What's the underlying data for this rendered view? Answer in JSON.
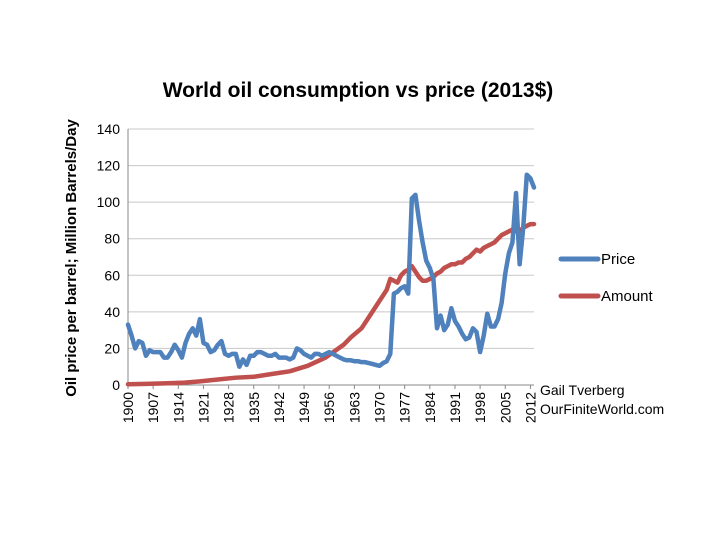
{
  "chart_data": {
    "type": "line",
    "title": "World oil consumption vs price (2013$)",
    "xlabel": "",
    "ylabel": "Oil price per barrel; Million Barrels/Day",
    "ylim": [
      0,
      140
    ],
    "yticks": [
      0,
      20,
      40,
      60,
      80,
      100,
      120,
      140
    ],
    "xlim": [
      1900,
      2013
    ],
    "xticks": [
      "1900",
      "1907",
      "1914",
      "1921",
      "1928",
      "1935",
      "1942",
      "1949",
      "1956",
      "1963",
      "1970",
      "1977",
      "1984",
      "1991",
      "1998",
      "2005",
      "2012"
    ],
    "grid": "horizontal",
    "legend_position": "right",
    "series": [
      {
        "name": "Price",
        "color": "#4f81bd",
        "points": [
          [
            1900,
            33
          ],
          [
            1901,
            27
          ],
          [
            1902,
            20
          ],
          [
            1903,
            24
          ],
          [
            1904,
            23
          ],
          [
            1905,
            16
          ],
          [
            1906,
            19
          ],
          [
            1907,
            18
          ],
          [
            1908,
            18
          ],
          [
            1909,
            18
          ],
          [
            1910,
            15
          ],
          [
            1911,
            15
          ],
          [
            1912,
            18
          ],
          [
            1913,
            22
          ],
          [
            1914,
            19
          ],
          [
            1915,
            15
          ],
          [
            1916,
            23
          ],
          [
            1917,
            28
          ],
          [
            1918,
            31
          ],
          [
            1919,
            27
          ],
          [
            1920,
            36
          ],
          [
            1921,
            23
          ],
          [
            1922,
            22
          ],
          [
            1923,
            18
          ],
          [
            1924,
            19
          ],
          [
            1925,
            22
          ],
          [
            1926,
            24
          ],
          [
            1927,
            17
          ],
          [
            1928,
            16
          ],
          [
            1929,
            17
          ],
          [
            1930,
            17
          ],
          [
            1931,
            10
          ],
          [
            1932,
            14
          ],
          [
            1933,
            11
          ],
          [
            1934,
            16
          ],
          [
            1935,
            16
          ],
          [
            1936,
            18
          ],
          [
            1937,
            18
          ],
          [
            1938,
            17
          ],
          [
            1939,
            16
          ],
          [
            1940,
            16
          ],
          [
            1941,
            17
          ],
          [
            1942,
            15
          ],
          [
            1943,
            15
          ],
          [
            1944,
            15
          ],
          [
            1945,
            14
          ],
          [
            1946,
            15
          ],
          [
            1947,
            20
          ],
          [
            1948,
            19
          ],
          [
            1949,
            17
          ],
          [
            1950,
            16
          ],
          [
            1951,
            15
          ],
          [
            1952,
            17
          ],
          [
            1953,
            17
          ],
          [
            1954,
            16
          ],
          [
            1955,
            17
          ],
          [
            1956,
            18
          ],
          [
            1957,
            17
          ],
          [
            1958,
            16
          ],
          [
            1959,
            15
          ],
          [
            1960,
            14
          ],
          [
            1961,
            13.5
          ],
          [
            1962,
            13.5
          ],
          [
            1963,
            13
          ],
          [
            1964,
            13
          ],
          [
            1965,
            12.5
          ],
          [
            1966,
            12.5
          ],
          [
            1967,
            12
          ],
          [
            1968,
            11.5
          ],
          [
            1969,
            11
          ],
          [
            1970,
            10.5
          ],
          [
            1971,
            12
          ],
          [
            1972,
            13
          ],
          [
            1973,
            17
          ],
          [
            1974,
            50
          ],
          [
            1975,
            51
          ],
          [
            1976,
            53
          ],
          [
            1977,
            54
          ],
          [
            1978,
            50
          ],
          [
            1979,
            102
          ],
          [
            1980,
            104
          ],
          [
            1981,
            90
          ],
          [
            1982,
            78
          ],
          [
            1983,
            68
          ],
          [
            1984,
            64
          ],
          [
            1985,
            58
          ],
          [
            1986,
            31
          ],
          [
            1987,
            38
          ],
          [
            1988,
            30
          ],
          [
            1989,
            33
          ],
          [
            1990,
            42
          ],
          [
            1991,
            35
          ],
          [
            1992,
            32
          ],
          [
            1993,
            28
          ],
          [
            1994,
            25
          ],
          [
            1995,
            26
          ],
          [
            1996,
            31
          ],
          [
            1997,
            29
          ],
          [
            1998,
            18
          ],
          [
            1999,
            27
          ],
          [
            2000,
            39
          ],
          [
            2001,
            32
          ],
          [
            2002,
            32
          ],
          [
            2003,
            36
          ],
          [
            2004,
            45
          ],
          [
            2005,
            61
          ],
          [
            2006,
            72
          ],
          [
            2007,
            78
          ],
          [
            2008,
            105
          ],
          [
            2009,
            66
          ],
          [
            2010,
            86
          ],
          [
            2011,
            115
          ],
          [
            2012,
            113
          ],
          [
            2013,
            108
          ]
        ]
      },
      {
        "name": "Amount",
        "color": "#c0504d",
        "points": [
          [
            1900,
            0.4
          ],
          [
            1905,
            0.6
          ],
          [
            1910,
            0.9
          ],
          [
            1915,
            1.2
          ],
          [
            1920,
            2
          ],
          [
            1925,
            3
          ],
          [
            1930,
            4
          ],
          [
            1935,
            4.5
          ],
          [
            1940,
            6
          ],
          [
            1945,
            7.5
          ],
          [
            1950,
            10.5
          ],
          [
            1955,
            15
          ],
          [
            1960,
            22
          ],
          [
            1962,
            26
          ],
          [
            1965,
            31
          ],
          [
            1967,
            37
          ],
          [
            1970,
            46
          ],
          [
            1972,
            52
          ],
          [
            1973,
            58
          ],
          [
            1974,
            57
          ],
          [
            1975,
            56
          ],
          [
            1976,
            60
          ],
          [
            1977,
            62
          ],
          [
            1978,
            63
          ],
          [
            1979,
            65
          ],
          [
            1980,
            62
          ],
          [
            1981,
            59
          ],
          [
            1982,
            57
          ],
          [
            1983,
            57
          ],
          [
            1984,
            58
          ],
          [
            1985,
            59
          ],
          [
            1986,
            61
          ],
          [
            1987,
            62
          ],
          [
            1988,
            64
          ],
          [
            1989,
            65
          ],
          [
            1990,
            66
          ],
          [
            1991,
            66
          ],
          [
            1992,
            67
          ],
          [
            1993,
            67
          ],
          [
            1994,
            69
          ],
          [
            1995,
            70
          ],
          [
            1996,
            72
          ],
          [
            1997,
            74
          ],
          [
            1998,
            73
          ],
          [
            1999,
            75
          ],
          [
            2000,
            76
          ],
          [
            2001,
            77
          ],
          [
            2002,
            78
          ],
          [
            2003,
            80
          ],
          [
            2004,
            82
          ],
          [
            2005,
            83
          ],
          [
            2006,
            84
          ],
          [
            2007,
            85
          ],
          [
            2008,
            84
          ],
          [
            2009,
            84
          ],
          [
            2010,
            86
          ],
          [
            2011,
            87
          ],
          [
            2012,
            88
          ],
          [
            2013,
            88
          ]
        ]
      }
    ],
    "credit": [
      "Gail Tverberg",
      "OurFiniteWorld.com"
    ]
  }
}
